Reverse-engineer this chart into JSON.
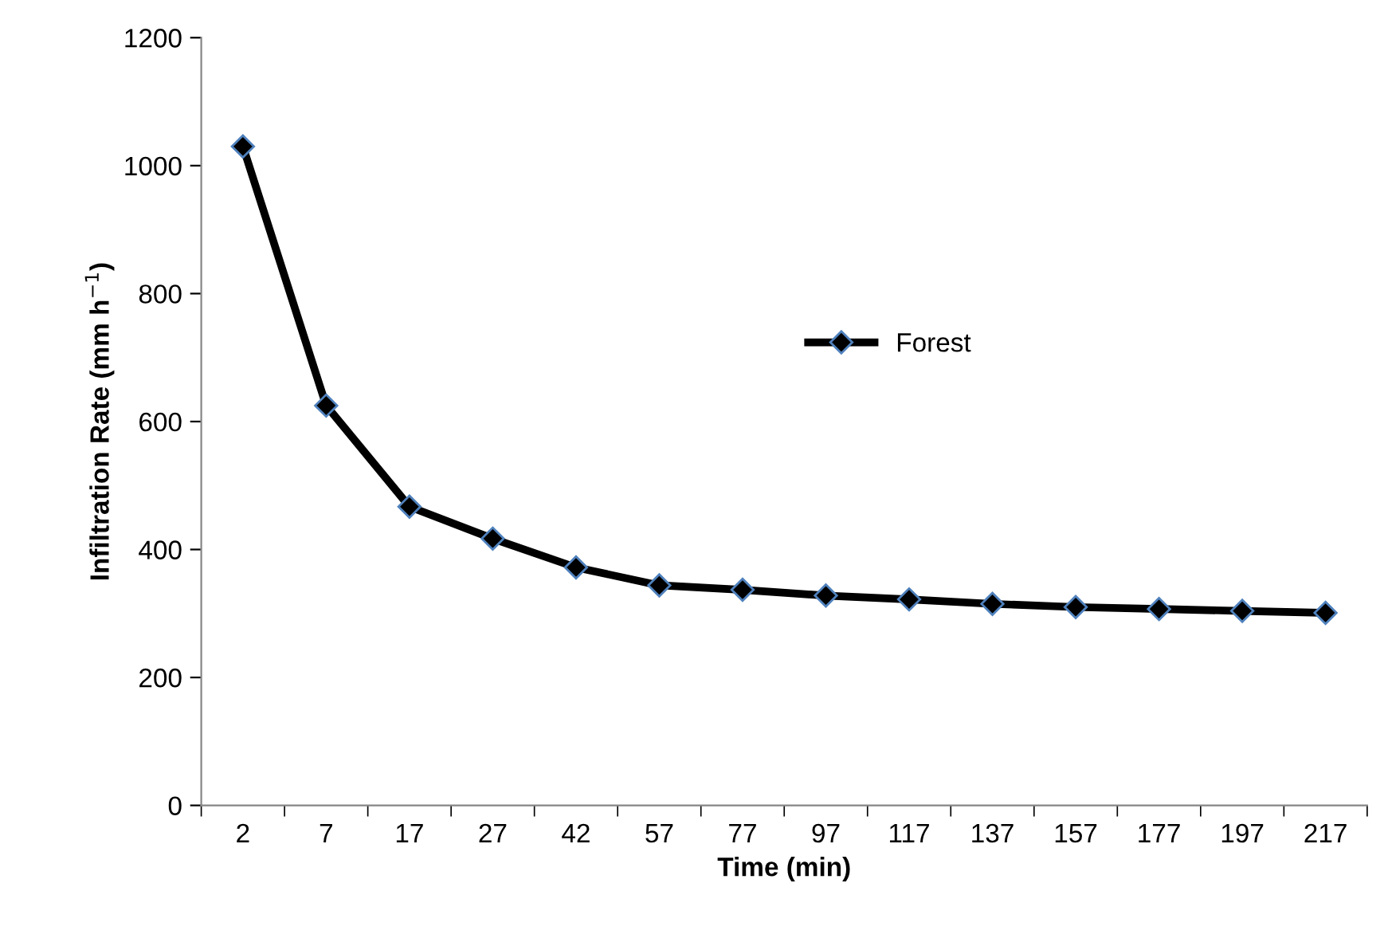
{
  "chart_data": {
    "type": "line",
    "xlabel": "Time (min)",
    "ylabel": "Infiltration Rate (mm h$^{−1}$)",
    "categories": [
      "2",
      "7",
      "17",
      "27",
      "42",
      "57",
      "77",
      "97",
      "117",
      "137",
      "157",
      "177",
      "197",
      "217"
    ],
    "series": [
      {
        "name": "Forest",
        "color": "#000000",
        "values": [
          1030,
          625,
          467,
          417,
          372,
          344,
          337,
          328,
          322,
          315,
          310,
          307,
          304,
          301
        ]
      }
    ],
    "ylim": [
      0,
      1200
    ],
    "yticks": [
      0,
      200,
      400,
      600,
      800,
      1000,
      1200
    ],
    "grid": false,
    "legend": "center right",
    "marker": "diamond",
    "line_style": "solid"
  }
}
